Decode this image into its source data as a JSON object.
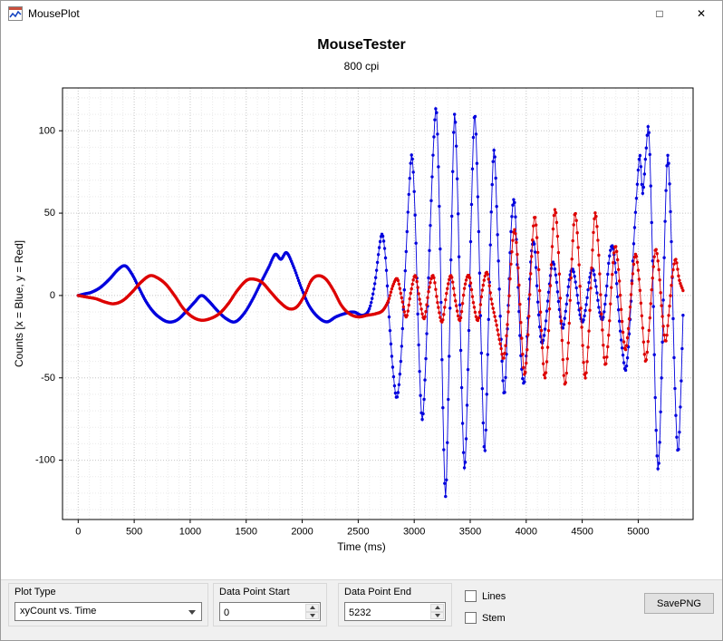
{
  "window": {
    "title": "MousePlot",
    "maximize_glyph": "□",
    "close_glyph": "✕"
  },
  "chart": {
    "title": "MouseTester",
    "subtitle": "800 cpi",
    "xlabel": "Time (ms)",
    "ylabel": "Counts [x = Blue, y = Red]"
  },
  "chart_data": {
    "type": "scatter",
    "title": "MouseTester",
    "subtitle": "800 cpi",
    "xlabel": "Time (ms)",
    "ylabel": "Counts [x = Blue, y = Red]",
    "xlim": [
      -140,
      5490
    ],
    "ylim": [
      -136,
      126
    ],
    "x_ticks": [
      0,
      500,
      1000,
      1500,
      2000,
      2500,
      3000,
      3500,
      4000,
      4500,
      5000
    ],
    "y_ticks": [
      -100,
      -50,
      0,
      50,
      100
    ],
    "x_minor_step": 100,
    "y_minor_step": 10,
    "grid": true,
    "legend": "x = Blue, y = Red",
    "sample_ms": 8,
    "series": [
      {
        "name": "xCount (Blue)",
        "color": "#0000dd",
        "keypoints": [
          [
            0,
            0
          ],
          [
            60,
            1
          ],
          [
            120,
            2
          ],
          [
            200,
            5
          ],
          [
            280,
            10
          ],
          [
            360,
            16
          ],
          [
            420,
            18
          ],
          [
            480,
            13
          ],
          [
            540,
            5
          ],
          [
            600,
            -3
          ],
          [
            660,
            -9
          ],
          [
            720,
            -13
          ],
          [
            800,
            -16
          ],
          [
            880,
            -15
          ],
          [
            960,
            -10
          ],
          [
            1040,
            -4
          ],
          [
            1100,
            0
          ],
          [
            1160,
            -3
          ],
          [
            1240,
            -9
          ],
          [
            1320,
            -14
          ],
          [
            1400,
            -16
          ],
          [
            1480,
            -11
          ],
          [
            1560,
            -2
          ],
          [
            1640,
            9
          ],
          [
            1700,
            17
          ],
          [
            1760,
            25
          ],
          [
            1810,
            22
          ],
          [
            1860,
            26
          ],
          [
            1920,
            18
          ],
          [
            1990,
            5
          ],
          [
            2060,
            -6
          ],
          [
            2140,
            -13
          ],
          [
            2220,
            -16
          ],
          [
            2300,
            -13
          ],
          [
            2380,
            -11
          ],
          [
            2460,
            -10
          ],
          [
            2540,
            -12
          ],
          [
            2600,
            -8
          ],
          [
            2650,
            8
          ],
          [
            2690,
            30
          ],
          [
            2715,
            37
          ],
          [
            2745,
            22
          ],
          [
            2775,
            -12
          ],
          [
            2810,
            -45
          ],
          [
            2845,
            -62
          ],
          [
            2880,
            -40
          ],
          [
            2920,
            15
          ],
          [
            2955,
            65
          ],
          [
            2980,
            85
          ],
          [
            3010,
            45
          ],
          [
            3040,
            -30
          ],
          [
            3070,
            -75
          ],
          [
            3100,
            -45
          ],
          [
            3140,
            35
          ],
          [
            3175,
            95
          ],
          [
            3200,
            111
          ],
          [
            3230,
            35
          ],
          [
            3255,
            -65
          ],
          [
            3280,
            -122
          ],
          [
            3305,
            -60
          ],
          [
            3335,
            45
          ],
          [
            3360,
            110
          ],
          [
            3390,
            55
          ],
          [
            3420,
            -45
          ],
          [
            3450,
            -105
          ],
          [
            3480,
            -45
          ],
          [
            3510,
            50
          ],
          [
            3540,
            110
          ],
          [
            3570,
            55
          ],
          [
            3600,
            -35
          ],
          [
            3630,
            -95
          ],
          [
            3660,
            -25
          ],
          [
            3690,
            55
          ],
          [
            3715,
            88
          ],
          [
            3745,
            35
          ],
          [
            3775,
            -25
          ],
          [
            3805,
            -60
          ],
          [
            3835,
            -15
          ],
          [
            3865,
            40
          ],
          [
            3895,
            57
          ],
          [
            3925,
            10
          ],
          [
            3955,
            -40
          ],
          [
            3985,
            -52
          ],
          [
            4015,
            -15
          ],
          [
            4045,
            25
          ],
          [
            4075,
            30
          ],
          [
            4105,
            -5
          ],
          [
            4135,
            -28
          ],
          [
            4165,
            -22
          ],
          [
            4200,
            2
          ],
          [
            4235,
            20
          ],
          [
            4265,
            12
          ],
          [
            4295,
            -8
          ],
          [
            4325,
            -20
          ],
          [
            4355,
            -8
          ],
          [
            4385,
            10
          ],
          [
            4415,
            16
          ],
          [
            4445,
            6
          ],
          [
            4475,
            -10
          ],
          [
            4505,
            -16
          ],
          [
            4535,
            -6
          ],
          [
            4565,
            10
          ],
          [
            4595,
            16
          ],
          [
            4625,
            5
          ],
          [
            4655,
            -10
          ],
          [
            4685,
            -14
          ],
          [
            4715,
            2
          ],
          [
            4740,
            22
          ],
          [
            4770,
            30
          ],
          [
            4800,
            14
          ],
          [
            4830,
            -14
          ],
          [
            4860,
            -34
          ],
          [
            4890,
            -45
          ],
          [
            4925,
            -18
          ],
          [
            4955,
            25
          ],
          [
            4985,
            60
          ],
          [
            5015,
            85
          ],
          [
            5040,
            62
          ],
          [
            5070,
            88
          ],
          [
            5095,
            100
          ],
          [
            5125,
            30
          ],
          [
            5155,
            -70
          ],
          [
            5180,
            -105
          ],
          [
            5210,
            -45
          ],
          [
            5240,
            45
          ],
          [
            5265,
            85
          ],
          [
            5295,
            35
          ],
          [
            5325,
            -50
          ],
          [
            5355,
            -95
          ],
          [
            5380,
            -60
          ],
          [
            5400,
            -12
          ]
        ]
      },
      {
        "name": "yCount (Red)",
        "color": "#dd0000",
        "keypoints": [
          [
            0,
            0
          ],
          [
            80,
            -1
          ],
          [
            160,
            -2
          ],
          [
            240,
            -4
          ],
          [
            320,
            -5
          ],
          [
            400,
            -3
          ],
          [
            480,
            2
          ],
          [
            560,
            8
          ],
          [
            640,
            12
          ],
          [
            700,
            11
          ],
          [
            780,
            7
          ],
          [
            860,
            0
          ],
          [
            940,
            -8
          ],
          [
            1020,
            -13
          ],
          [
            1100,
            -15
          ],
          [
            1180,
            -14
          ],
          [
            1260,
            -11
          ],
          [
            1340,
            -5
          ],
          [
            1420,
            3
          ],
          [
            1500,
            9
          ],
          [
            1560,
            10
          ],
          [
            1640,
            8
          ],
          [
            1720,
            2
          ],
          [
            1800,
            -4
          ],
          [
            1880,
            -8
          ],
          [
            1950,
            -7
          ],
          [
            2020,
            0
          ],
          [
            2080,
            9
          ],
          [
            2140,
            12
          ],
          [
            2210,
            10
          ],
          [
            2280,
            3
          ],
          [
            2350,
            -6
          ],
          [
            2420,
            -11
          ],
          [
            2500,
            -13
          ],
          [
            2580,
            -12
          ],
          [
            2660,
            -11
          ],
          [
            2720,
            -9
          ],
          [
            2770,
            -3
          ],
          [
            2810,
            6
          ],
          [
            2850,
            10
          ],
          [
            2890,
            -2
          ],
          [
            2930,
            -13
          ],
          [
            2970,
            2
          ],
          [
            3010,
            12
          ],
          [
            3050,
            -3
          ],
          [
            3090,
            -14
          ],
          [
            3130,
            3
          ],
          [
            3170,
            12
          ],
          [
            3210,
            -5
          ],
          [
            3250,
            -16
          ],
          [
            3290,
            2
          ],
          [
            3330,
            12
          ],
          [
            3370,
            -4
          ],
          [
            3410,
            -15
          ],
          [
            3450,
            5
          ],
          [
            3490,
            12
          ],
          [
            3530,
            -5
          ],
          [
            3570,
            -15
          ],
          [
            3610,
            4
          ],
          [
            3650,
            14
          ],
          [
            3690,
            -3
          ],
          [
            3730,
            -16
          ],
          [
            3770,
            -30
          ],
          [
            3800,
            -38
          ],
          [
            3835,
            -15
          ],
          [
            3865,
            20
          ],
          [
            3895,
            40
          ],
          [
            3925,
            20
          ],
          [
            3955,
            -20
          ],
          [
            3985,
            -48
          ],
          [
            4015,
            -25
          ],
          [
            4045,
            20
          ],
          [
            4075,
            48
          ],
          [
            4105,
            25
          ],
          [
            4135,
            -20
          ],
          [
            4165,
            -50
          ],
          [
            4195,
            -28
          ],
          [
            4225,
            20
          ],
          [
            4255,
            52
          ],
          [
            4285,
            30
          ],
          [
            4315,
            -20
          ],
          [
            4345,
            -54
          ],
          [
            4375,
            -30
          ],
          [
            4405,
            18
          ],
          [
            4435,
            50
          ],
          [
            4465,
            28
          ],
          [
            4495,
            -18
          ],
          [
            4525,
            -50
          ],
          [
            4555,
            -28
          ],
          [
            4585,
            18
          ],
          [
            4615,
            50
          ],
          [
            4645,
            28
          ],
          [
            4675,
            -15
          ],
          [
            4705,
            -42
          ],
          [
            4735,
            -25
          ],
          [
            4765,
            10
          ],
          [
            4795,
            30
          ],
          [
            4825,
            15
          ],
          [
            4855,
            -15
          ],
          [
            4885,
            -33
          ],
          [
            4915,
            -18
          ],
          [
            4945,
            8
          ],
          [
            4975,
            25
          ],
          [
            5005,
            12
          ],
          [
            5035,
            -15
          ],
          [
            5065,
            -40
          ],
          [
            5095,
            -22
          ],
          [
            5125,
            8
          ],
          [
            5155,
            28
          ],
          [
            5185,
            15
          ],
          [
            5215,
            -12
          ],
          [
            5245,
            -28
          ],
          [
            5275,
            -10
          ],
          [
            5305,
            12
          ],
          [
            5335,
            22
          ],
          [
            5365,
            10
          ],
          [
            5400,
            3
          ]
        ]
      }
    ]
  },
  "controls": {
    "plot_type": {
      "label": "Plot Type",
      "value": "xyCount vs. Time"
    },
    "data_point_start": {
      "label": "Data Point Start",
      "value": "0"
    },
    "data_point_end": {
      "label": "Data Point End",
      "value": "5232"
    },
    "lines": {
      "label": "Lines",
      "checked": false
    },
    "stem": {
      "label": "Stem",
      "checked": false
    },
    "save_png": {
      "label": "SavePNG"
    }
  }
}
